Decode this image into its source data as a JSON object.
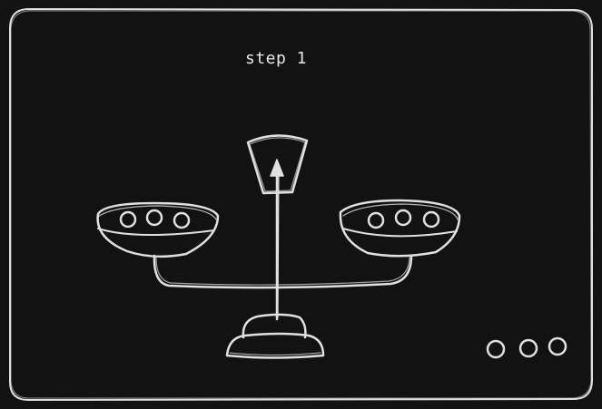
{
  "diagram": {
    "step_label": "step 1",
    "stroke_color": "#e0e0e0",
    "background_color": "#121212",
    "left_pan": {
      "ball_count": 3
    },
    "right_pan": {
      "ball_count": 3
    },
    "tray": {
      "ball_count": 3
    },
    "icons": {
      "frame": "rounded-rectangle-frame",
      "scale": "balance-scale-icon",
      "pointer": "up-arrow-icon"
    }
  }
}
